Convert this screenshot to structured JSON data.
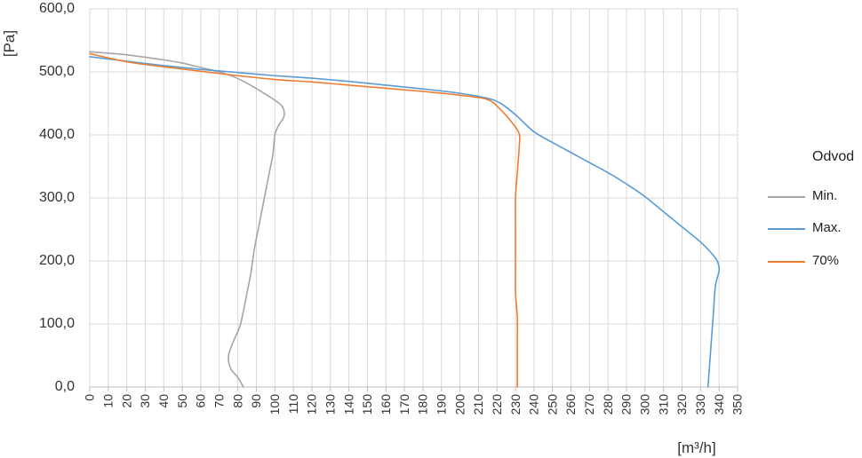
{
  "chart_data": {
    "type": "line",
    "title": "",
    "xlabel": "[m³/h]",
    "ylabel": "[Pa]",
    "xlim": [
      0,
      350
    ],
    "ylim": [
      0,
      600
    ],
    "x_ticks": [
      "0",
      "10",
      "20",
      "30",
      "40",
      "50",
      "60",
      "70",
      "80",
      "90",
      "100",
      "110",
      "120",
      "130",
      "140",
      "150",
      "160",
      "170",
      "180",
      "190",
      "200",
      "210",
      "220",
      "230",
      "240",
      "250",
      "260",
      "270",
      "280",
      "290",
      "300",
      "310",
      "320",
      "330",
      "340",
      "350"
    ],
    "y_ticks": [
      "0,0",
      "100,0",
      "200,0",
      "300,0",
      "400,0",
      "500,0",
      "600,0"
    ],
    "grid": true,
    "legend": {
      "title": "Odvod",
      "position": "right"
    },
    "series": [
      {
        "name": "Min.",
        "color": "#a5a5a5",
        "points": [
          [
            0,
            532
          ],
          [
            20,
            527
          ],
          [
            40,
            519
          ],
          [
            50,
            514
          ],
          [
            60,
            507
          ],
          [
            70,
            500
          ],
          [
            78,
            492
          ],
          [
            85,
            482
          ],
          [
            92,
            470
          ],
          [
            100,
            455
          ],
          [
            104,
            445
          ],
          [
            105,
            430
          ],
          [
            102,
            415
          ],
          [
            100,
            400
          ],
          [
            99,
            370
          ],
          [
            97,
            340
          ],
          [
            95,
            310
          ],
          [
            93,
            280
          ],
          [
            91,
            250
          ],
          [
            89,
            220
          ],
          [
            87,
            180
          ],
          [
            85,
            150
          ],
          [
            83,
            120
          ],
          [
            81,
            95
          ],
          [
            78,
            75
          ],
          [
            75,
            50
          ],
          [
            76,
            30
          ],
          [
            80,
            15
          ],
          [
            83,
            0
          ]
        ]
      },
      {
        "name": "Max.",
        "color": "#5b9bd5",
        "points": [
          [
            0,
            524
          ],
          [
            20,
            517
          ],
          [
            40,
            510
          ],
          [
            60,
            504
          ],
          [
            80,
            499
          ],
          [
            100,
            494
          ],
          [
            120,
            490
          ],
          [
            140,
            485
          ],
          [
            160,
            479
          ],
          [
            180,
            473
          ],
          [
            200,
            466
          ],
          [
            215,
            458
          ],
          [
            222,
            450
          ],
          [
            230,
            432
          ],
          [
            240,
            405
          ],
          [
            250,
            388
          ],
          [
            260,
            372
          ],
          [
            270,
            356
          ],
          [
            280,
            340
          ],
          [
            290,
            322
          ],
          [
            300,
            302
          ],
          [
            310,
            278
          ],
          [
            320,
            254
          ],
          [
            330,
            230
          ],
          [
            336,
            212
          ],
          [
            339,
            200
          ],
          [
            340,
            185
          ],
          [
            338,
            160
          ],
          [
            337,
            120
          ],
          [
            336,
            80
          ],
          [
            335,
            40
          ],
          [
            334,
            0
          ]
        ]
      },
      {
        "name": "70%",
        "color": "#ed7d31",
        "points": [
          [
            0,
            529
          ],
          [
            20,
            516
          ],
          [
            40,
            508
          ],
          [
            60,
            501
          ],
          [
            80,
            494
          ],
          [
            100,
            488
          ],
          [
            120,
            484
          ],
          [
            140,
            479
          ],
          [
            160,
            474
          ],
          [
            180,
            469
          ],
          [
            200,
            463
          ],
          [
            215,
            456
          ],
          [
            222,
            440
          ],
          [
            228,
            420
          ],
          [
            232,
            402
          ],
          [
            232,
            380
          ],
          [
            231,
            340
          ],
          [
            230,
            300
          ],
          [
            230,
            260
          ],
          [
            230,
            220
          ],
          [
            230,
            180
          ],
          [
            230,
            150
          ],
          [
            231,
            110
          ],
          [
            231,
            70
          ],
          [
            231,
            30
          ],
          [
            231,
            0
          ]
        ]
      }
    ]
  }
}
